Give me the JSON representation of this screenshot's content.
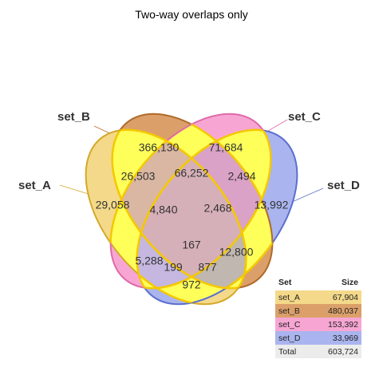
{
  "title": "Two-way overlaps only",
  "sets": [
    {
      "id": "A",
      "name": "set_A",
      "color": "#f4d98a",
      "stroke": "#d4a92a",
      "size": "67,904"
    },
    {
      "id": "B",
      "name": "set_B",
      "color": "#dba06a",
      "stroke": "#b06a2a",
      "size": "480,037"
    },
    {
      "id": "C",
      "name": "set_C",
      "color": "#f7a6d4",
      "stroke": "#e06aa8",
      "size": "153,392"
    },
    {
      "id": "D",
      "name": "set_D",
      "color": "#aab4ee",
      "stroke": "#5b6fcf",
      "size": "33,969"
    }
  ],
  "regions": {
    "B_only": "366,130",
    "C_only": "71,684",
    "A_only": "29,058",
    "D_only": "13,992",
    "AB": "26,503",
    "BC": "66,252",
    "CD": "2,494",
    "ABC": "4,840",
    "BCD": "2,468",
    "ABCD": "167",
    "AC": "5,288",
    "BD": "12,800",
    "ACD": "199",
    "ABD": "877",
    "AD": "972"
  },
  "highlight_color": "#ffff5a",
  "highlight_stroke": "#f5c800",
  "legend": {
    "header_set": "Set",
    "header_size": "Size",
    "total_label": "Total",
    "total_value": "603,724",
    "total_color": "#ececec"
  }
}
